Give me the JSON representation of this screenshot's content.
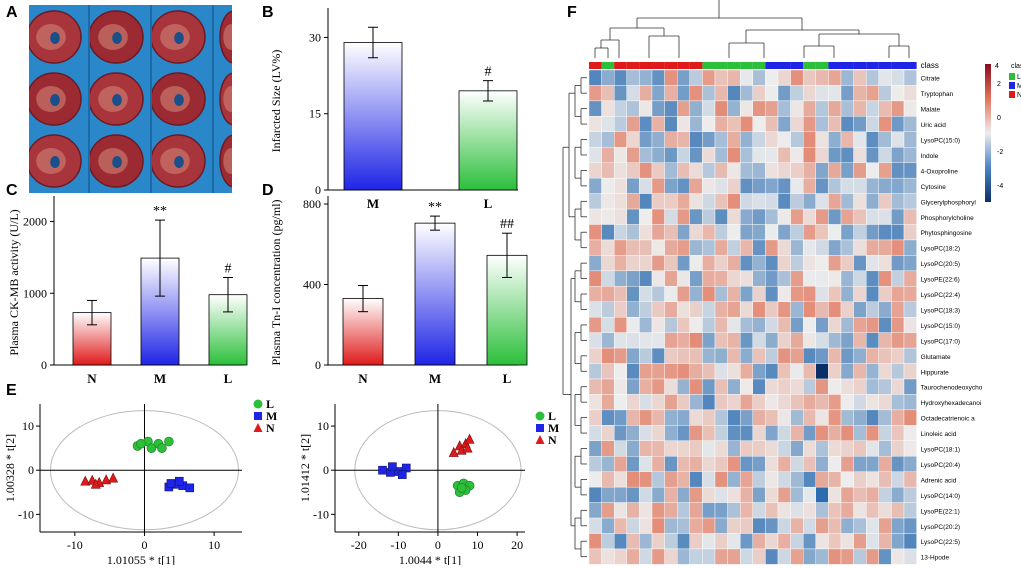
{
  "panels": {
    "a": "A",
    "b": "B",
    "c": "C",
    "d": "D",
    "e": "E",
    "f": "F"
  },
  "colors": {
    "L": "#2bbf3a",
    "M": "#1f25e6",
    "N": "#e01a1a",
    "heat_low": "#0b2e66",
    "heat_mid": "#ededed",
    "heat_high": "#8b0a1f"
  },
  "photo": {
    "rows": 3,
    "cols": 4,
    "background": "#2a87c9"
  },
  "chart_data": [
    {
      "id": "B",
      "type": "bar",
      "categories": [
        "M",
        "L"
      ],
      "values": [
        29,
        19.5
      ],
      "errors": [
        3,
        2
      ],
      "annotations": [
        "",
        "#"
      ],
      "ylabel": "Infarcted Size (LV%)",
      "ylim": [
        0,
        35
      ],
      "yticks": [
        0,
        15,
        30
      ],
      "bar_colors": [
        "M",
        "L"
      ]
    },
    {
      "id": "C",
      "type": "bar",
      "categories": [
        "N",
        "M",
        "L"
      ],
      "values": [
        730,
        1490,
        980
      ],
      "errors": [
        170,
        530,
        240
      ],
      "annotations": [
        "",
        "**",
        "#"
      ],
      "ylabel": "Plasma CK-MB activity (U/L)",
      "ylim": [
        0,
        2300
      ],
      "yticks": [
        0,
        1000,
        2000
      ],
      "bar_colors": [
        "N",
        "M",
        "L"
      ]
    },
    {
      "id": "D",
      "type": "bar",
      "categories": [
        "N",
        "M",
        "L"
      ],
      "values": [
        330,
        705,
        545
      ],
      "errors": [
        65,
        35,
        110
      ],
      "annotations": [
        "",
        "**",
        "##"
      ],
      "ylabel": "Plasma Tn-I concentration (pg/ml)",
      "ylim": [
        0,
        820
      ],
      "yticks": [
        0,
        400,
        800
      ],
      "bar_colors": [
        "N",
        "M",
        "L"
      ]
    },
    {
      "id": "E1",
      "type": "scatter",
      "xlabel": "1.01055 * t[1]",
      "ylabel": "1.00328 * t[2]",
      "xlim": [
        -15,
        14
      ],
      "ylim": [
        -14,
        15
      ],
      "xticks": [
        -10,
        0,
        10
      ],
      "yticks": [
        -10,
        0,
        10
      ],
      "legend": [
        "L",
        "M",
        "N"
      ],
      "series": [
        {
          "name": "L",
          "marker": "circle",
          "x": [
            -1,
            0.5,
            2,
            3.5,
            2.5,
            1,
            -0.5
          ],
          "y": [
            5.5,
            6.5,
            6,
            6.5,
            5,
            5,
            6
          ]
        },
        {
          "name": "M",
          "marker": "square",
          "x": [
            3.5,
            4.5,
            5.5,
            6.5,
            5,
            3.8
          ],
          "y": [
            -3.8,
            -3.2,
            -3.5,
            -4,
            -2.5,
            -3
          ]
        },
        {
          "name": "N",
          "marker": "triangle",
          "x": [
            -8.5,
            -7.5,
            -6.5,
            -5.5,
            -4.5,
            -7
          ],
          "y": [
            -2.5,
            -2.3,
            -2.8,
            -2.2,
            -1.8,
            -3.2
          ]
        }
      ],
      "ellipse": {
        "rx": 13.5,
        "ry": 13.5
      }
    },
    {
      "id": "E2",
      "type": "scatter",
      "xlabel": "1.0044 * t[1]",
      "ylabel": "1.01412 * t[2]",
      "xlim": [
        -26,
        22
      ],
      "ylim": [
        -14,
        15
      ],
      "xticks": [
        -20,
        -10,
        0,
        10,
        20
      ],
      "yticks": [
        -10,
        0,
        10
      ],
      "legend": [
        "L",
        "M",
        "N"
      ],
      "series": [
        {
          "name": "L",
          "marker": "circle",
          "x": [
            5,
            6.5,
            8,
            7,
            5.5,
            6
          ],
          "y": [
            -3.5,
            -3,
            -3.5,
            -4.5,
            -5,
            -4
          ]
        },
        {
          "name": "M",
          "marker": "square",
          "x": [
            -14,
            -12,
            -10,
            -8,
            -11.5,
            -9
          ],
          "y": [
            0,
            -0.5,
            -0.3,
            0.5,
            0.8,
            -1
          ]
        },
        {
          "name": "N",
          "marker": "triangle",
          "x": [
            4,
            5.5,
            7,
            8,
            6,
            7.5
          ],
          "y": [
            4,
            5.5,
            6,
            7,
            4.5,
            5
          ]
        }
      ],
      "ellipse": {
        "rx": 21,
        "ry": 13.5
      }
    },
    {
      "id": "F",
      "type": "heatmap",
      "legend_title": "class",
      "colorbar_title": "4",
      "colorbar_ticks": [
        "2",
        "0",
        "-2",
        "-4"
      ],
      "class_label": "class",
      "col_classes": [
        "N",
        "L",
        "N",
        "N",
        "N",
        "N",
        "N",
        "N",
        "N",
        "L",
        "L",
        "L",
        "L",
        "L",
        "M",
        "M",
        "M",
        "L",
        "L",
        "M",
        "M",
        "M",
        "M",
        "M",
        "M",
        "M"
      ],
      "rows": [
        "Citrate",
        "Tryptophan",
        "Malate",
        "Uric acid",
        "LysoPC(15:0)",
        "Indole",
        "4-Oxoproline",
        "Cytosine",
        "Glycerylphosphoryl",
        "Phosphorylcholine",
        "Phytosphingosine",
        "LysoPC(18:2)",
        "LysoPC(20:5)",
        "LysoPE(22:6)",
        "LysoPC(22:4)",
        "LysoPC(18:3)",
        "LysoPC(15:0)",
        "LysoPC(17:0)",
        "Glutamate",
        "Hippurate",
        "Taurochenodeoxycho",
        "Hydroxyhexadecanoi",
        "Octadecatrienoic a",
        "Linoleic acid",
        "LysoPC(18:1)",
        "LysoPC(20:4)",
        "Adrenic acid",
        "LysoPC(14:0)",
        "LysoPE(22:1)",
        "LysoPC(20:2)",
        "LysoPC(22:5)",
        "13-Hpode"
      ]
    }
  ]
}
